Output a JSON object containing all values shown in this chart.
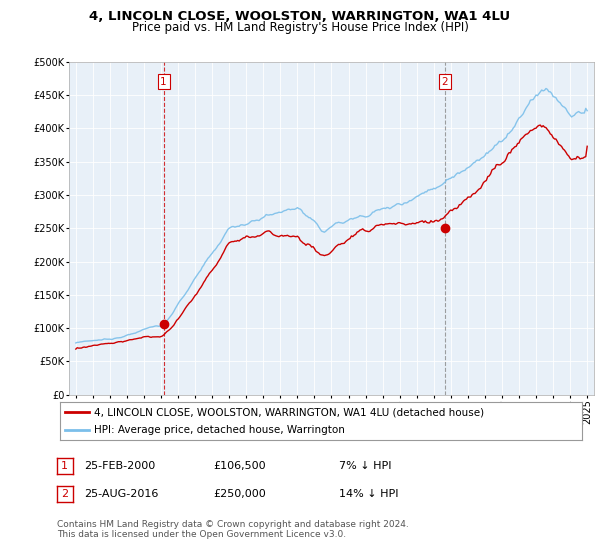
{
  "title": "4, LINCOLN CLOSE, WOOLSTON, WARRINGTON, WA1 4LU",
  "subtitle": "Price paid vs. HM Land Registry's House Price Index (HPI)",
  "ylim": [
    0,
    500000
  ],
  "yticks": [
    0,
    50000,
    100000,
    150000,
    200000,
    250000,
    300000,
    350000,
    400000,
    450000,
    500000
  ],
  "hpi_color": "#7bbfea",
  "price_color": "#cc0000",
  "marker_color": "#cc0000",
  "vline1_color": "#cc0000",
  "vline2_color": "#888888",
  "bg_color": "#ffffff",
  "chart_bg_color": "#e8f0f8",
  "grid_color": "#ffffff",
  "transaction1_x": 2000.15,
  "transaction1_price": 106500,
  "transaction2_x": 2016.65,
  "transaction2_price": 250000,
  "legend_label_red": "4, LINCOLN CLOSE, WOOLSTON, WARRINGTON, WA1 4LU (detached house)",
  "legend_label_blue": "HPI: Average price, detached house, Warrington",
  "table_row1_date": "25-FEB-2000",
  "table_row1_price": "£106,500",
  "table_row1_hpi": "7% ↓ HPI",
  "table_row2_date": "25-AUG-2016",
  "table_row2_price": "£250,000",
  "table_row2_hpi": "14% ↓ HPI",
  "footnote": "Contains HM Land Registry data © Crown copyright and database right 2024.\nThis data is licensed under the Open Government Licence v3.0.",
  "title_fontsize": 9.5,
  "subtitle_fontsize": 8.5,
  "tick_fontsize": 7,
  "legend_fontsize": 7.5,
  "table_fontsize": 8,
  "footnote_fontsize": 6.5
}
